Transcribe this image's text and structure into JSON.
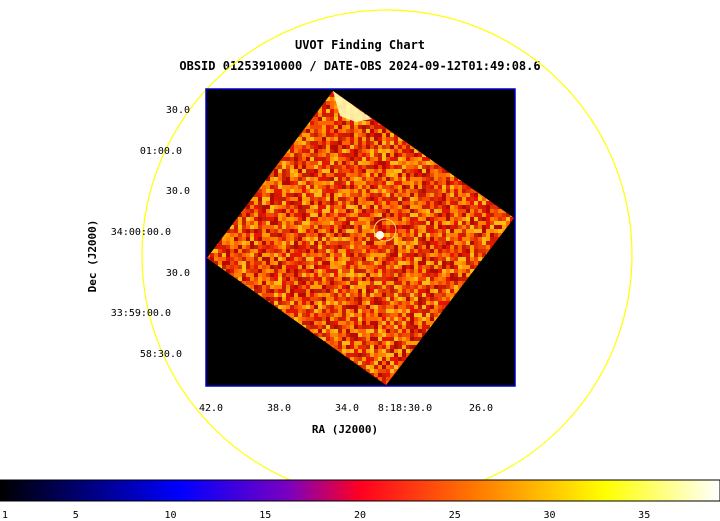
{
  "chart_data": {
    "type": "heatmap",
    "title": "UVOT Finding Chart",
    "subtitle": "OBSID 01253910000 / DATE-OBS 2024-09-12T01:49:08.6",
    "xlabel": "RA (J2000)",
    "ylabel": "Dec (J2000)",
    "x_ticks": [
      "42.0",
      "38.0",
      "34.0",
      "8:18:30.0",
      "26.0"
    ],
    "y_ticks": [
      "30.0",
      "01:00.0",
      "30.0",
      "34:00:00.0",
      "30.0",
      "33:59:00.0",
      "58:30.0"
    ],
    "colorbar": {
      "min": 1,
      "max": 39,
      "ticks": [
        "1",
        "5",
        "10",
        "15",
        "20",
        "25",
        "30",
        "35"
      ],
      "tick_values": [
        1,
        5,
        10,
        15,
        20,
        25,
        30,
        35
      ]
    },
    "colors": {
      "frame": "#0000c8",
      "circle": "#ffff00",
      "source_marker": "#ffff00"
    }
  }
}
